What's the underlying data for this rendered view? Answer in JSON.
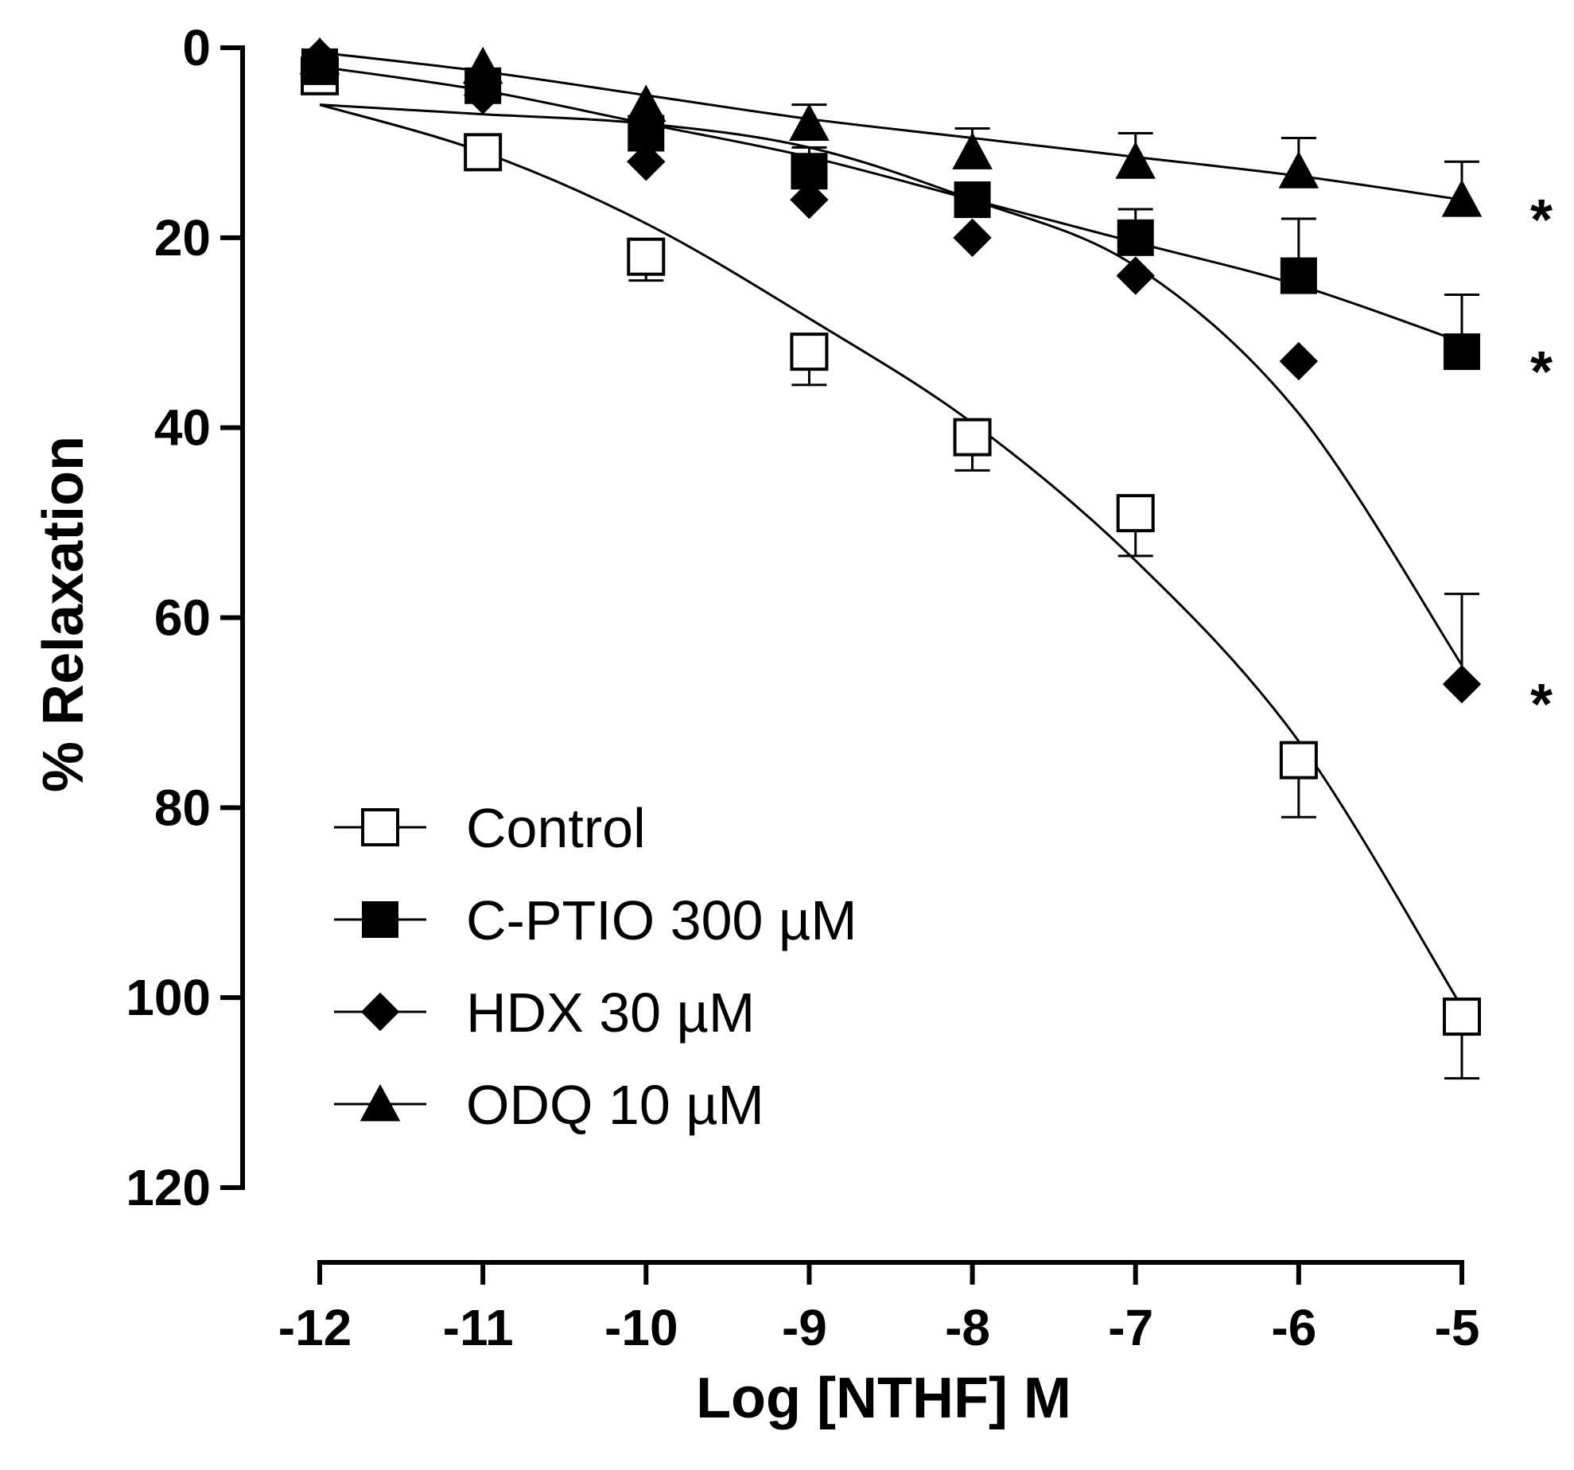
{
  "chart_data": {
    "type": "line",
    "title": "",
    "xlabel": "Log [NTHF] M",
    "ylabel": "% Relaxation",
    "xlim": [
      -12,
      -5
    ],
    "ylim": [
      0,
      120
    ],
    "y_inverted": true,
    "x_ticks": [
      -12,
      -11,
      -10,
      -9,
      -8,
      -7,
      -6,
      -5
    ],
    "x_tick_labels": [
      "-12",
      "-11",
      "-10",
      "-9",
      "-8",
      "-7",
      "-6",
      "-5"
    ],
    "y_ticks": [
      0,
      20,
      40,
      60,
      80,
      100,
      120
    ],
    "y_tick_labels": [
      "0",
      "20",
      "40",
      "60",
      "80",
      "100",
      "120"
    ],
    "grid": false,
    "legend_position": "bottom-left",
    "x": [
      -12,
      -11,
      -10,
      -9,
      -8,
      -7,
      -6,
      -5
    ],
    "series": [
      {
        "name": "Control",
        "marker": "open-square",
        "values": [
          3,
          11,
          22,
          32,
          41,
          49,
          75,
          102
        ],
        "errors": [
          0,
          0,
          2.5,
          3.5,
          3.5,
          4.5,
          6,
          6.5
        ],
        "fit": [
          6,
          11,
          18.5,
          28.5,
          39.5,
          54,
          73,
          101
        ]
      },
      {
        "name": "C-PTIO 300 µM",
        "marker": "filled-square",
        "values": [
          2,
          4,
          9,
          13,
          16,
          20,
          24,
          32
        ],
        "errors": [
          0,
          0,
          0,
          2.5,
          0,
          3,
          6,
          6
        ],
        "fit": [
          2,
          4.5,
          8,
          11.5,
          16,
          20.5,
          25,
          31
        ]
      },
      {
        "name": "HDX 30 µM",
        "marker": "filled-diamond",
        "values": [
          1,
          5,
          12,
          16,
          20,
          24,
          33,
          67
        ],
        "errors": [
          0,
          0,
          0,
          0,
          0,
          0,
          0,
          9.5
        ],
        "fit": [
          6,
          7,
          8,
          10.5,
          16,
          23,
          38.5,
          65
        ]
      },
      {
        "name": "ODQ 10 µM",
        "marker": "filled-triangle",
        "values": [
          1,
          2,
          6,
          8,
          11,
          12,
          13,
          16
        ],
        "errors": [
          0,
          0,
          0,
          2,
          2.5,
          3,
          3.5,
          4
        ],
        "fit": [
          0.5,
          2.5,
          5,
          7.5,
          9.5,
          11.5,
          13.5,
          16
        ]
      }
    ],
    "annotations": [
      {
        "text": "*",
        "series": "ODQ 10 µM"
      },
      {
        "text": "*",
        "series": "C-PTIO 300 µM"
      },
      {
        "text": "*",
        "series": "HDX 30 µM"
      }
    ]
  }
}
